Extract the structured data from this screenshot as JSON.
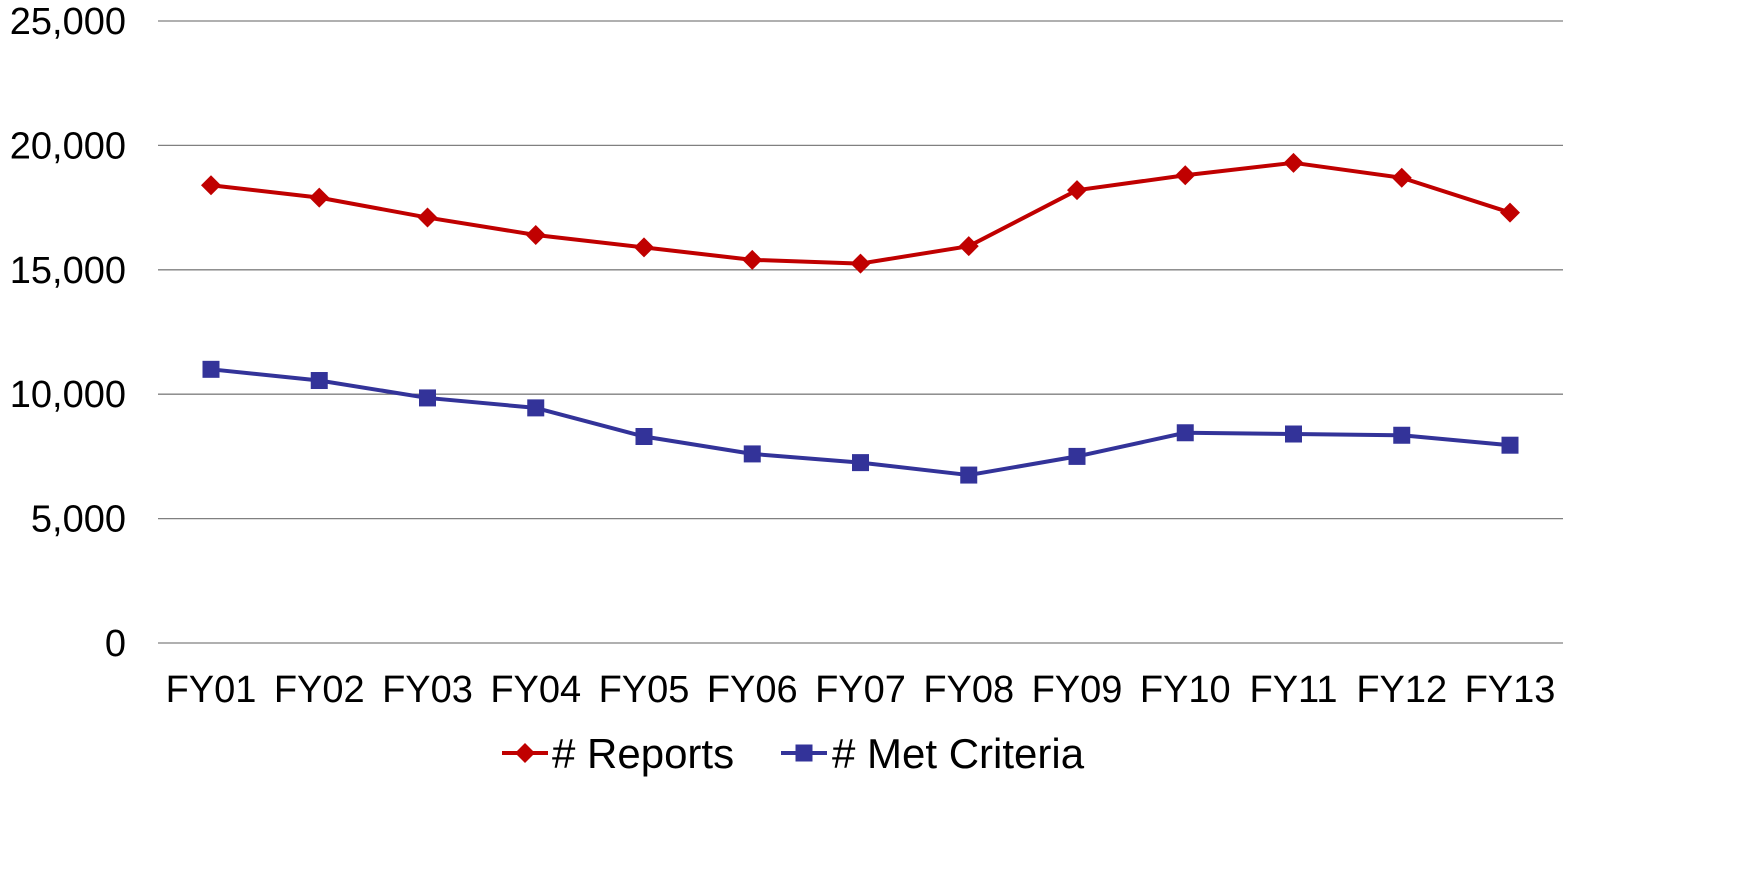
{
  "chart_data": {
    "type": "line",
    "categories": [
      "FY01",
      "FY02",
      "FY03",
      "FY04",
      "FY05",
      "FY06",
      "FY07",
      "FY08",
      "FY09",
      "FY10",
      "FY11",
      "FY12",
      "FY13"
    ],
    "series": [
      {
        "name": "# Reports",
        "color": "#C00000",
        "marker": "diamond",
        "values": [
          18400,
          17900,
          17100,
          16400,
          15900,
          15400,
          15250,
          15950,
          18200,
          18800,
          19300,
          18700,
          17300
        ]
      },
      {
        "name": "# Met Criteria",
        "color": "#333399",
        "marker": "square",
        "values": [
          11000,
          10550,
          9850,
          9450,
          8300,
          7600,
          7250,
          6750,
          7500,
          8450,
          8400,
          8350,
          7950
        ]
      }
    ],
    "y_ticks": [
      "0",
      "5,000",
      "10,000",
      "15,000",
      "20,000",
      "25,000"
    ],
    "ylim": [
      0,
      25000
    ],
    "grid": true,
    "gridline_color": "#808080",
    "legend_position": "bottom"
  }
}
